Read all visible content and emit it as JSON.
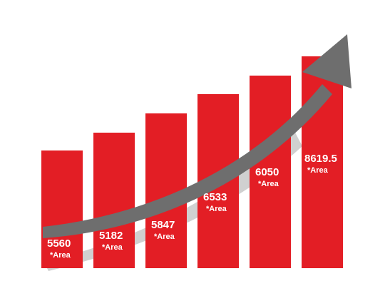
{
  "chart_data": {
    "type": "bar",
    "title": "",
    "xlabel": "",
    "ylabel": "",
    "categories": [
      "",
      "",
      "",
      "",
      "",
      ""
    ],
    "values": [
      5560,
      5182,
      5847,
      6533,
      6050,
      8619.5
    ],
    "data_labels": [
      "5560",
      "5182",
      "5847",
      "6533",
      "6050",
      "8619.5"
    ],
    "value_note": "*Area",
    "trend_arrow": "upward growth arrow",
    "grid": false,
    "legend": "none"
  },
  "colors": {
    "bar": "#e31e25",
    "arrow": "#6e6e6e",
    "arrow_shadow": "#d0d0d0",
    "text": "#ffffff"
  }
}
